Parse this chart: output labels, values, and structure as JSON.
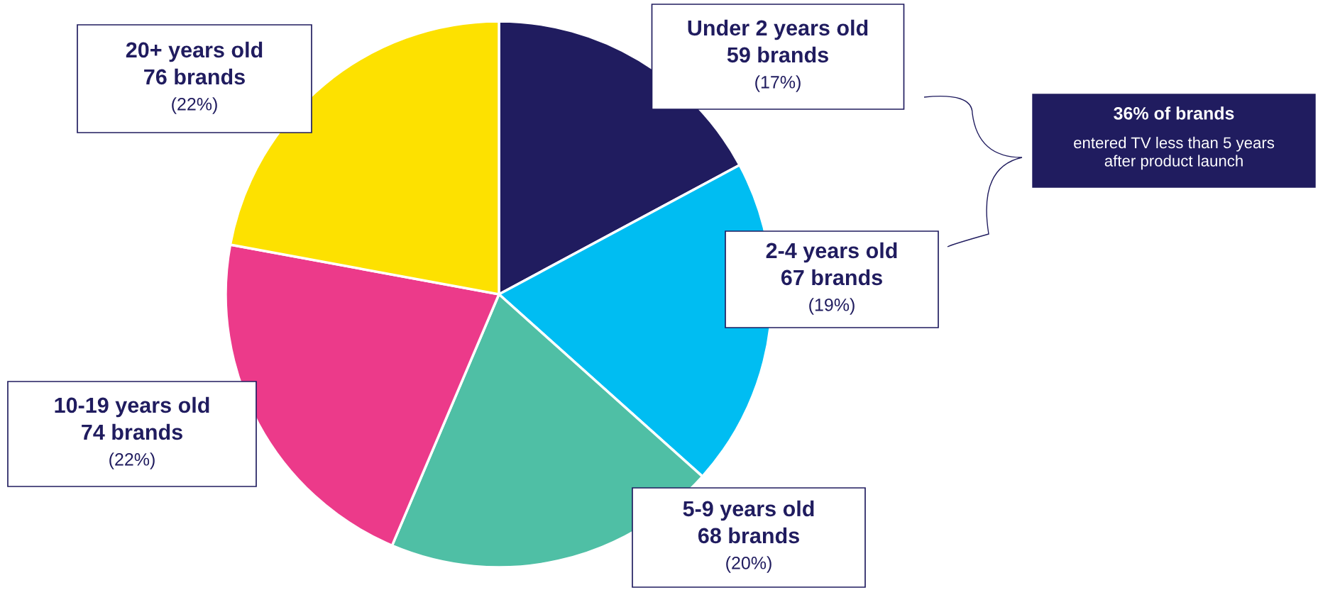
{
  "chart_data": {
    "type": "pie",
    "categories": [
      "Under 2 years old",
      "2-4 years old",
      "5-9 years old",
      "10-19 years old",
      "20+ years old"
    ],
    "values": [
      59,
      67,
      68,
      74,
      76
    ],
    "colors": [
      "#201c5f",
      "#00bdf2",
      "#4fbfa5",
      "#ec3a8a",
      "#fde100"
    ],
    "value_labels": [
      "59 brands\n(17%)",
      "67 brands\n(19%)",
      "68 brands\n(20%)",
      "74 brands\n(22%)",
      "76 brands\n(22%)"
    ],
    "annotations": [
      "36% of brands",
      "entered TV less than 5 years\nafter product launch"
    ],
    "legend": false
  }
}
